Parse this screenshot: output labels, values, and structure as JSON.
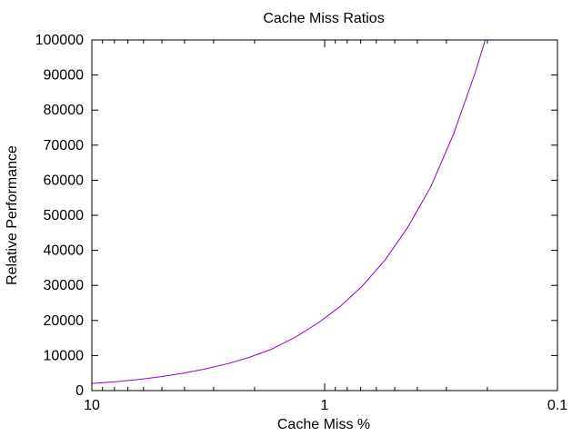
{
  "chart_data": {
    "type": "line",
    "title": "Cache Miss Ratios",
    "xlabel": "Cache Miss %",
    "ylabel": "Relative Performance",
    "x_scale": "log",
    "x_reversed": true,
    "xlim": [
      10,
      0.1
    ],
    "ylim": [
      0,
      100000
    ],
    "x_ticks": [
      {
        "value": 10,
        "label": "10"
      },
      {
        "value": 1,
        "label": "1"
      },
      {
        "value": 0.1,
        "label": "0.1"
      }
    ],
    "y_ticks": [
      {
        "value": 0,
        "label": "0"
      },
      {
        "value": 10000,
        "label": "10000"
      },
      {
        "value": 20000,
        "label": "20000"
      },
      {
        "value": 30000,
        "label": "30000"
      },
      {
        "value": 40000,
        "label": "40000"
      },
      {
        "value": 50000,
        "label": "50000"
      },
      {
        "value": 60000,
        "label": "60000"
      },
      {
        "value": 70000,
        "label": "70000"
      },
      {
        "value": 80000,
        "label": "80000"
      },
      {
        "value": 90000,
        "label": "90000"
      },
      {
        "value": 100000,
        "label": "100000"
      }
    ],
    "grid": false,
    "legend": "none",
    "series": [
      {
        "color": "#9400d3",
        "x": [
          10,
          8,
          6.4,
          5.1,
          4.1,
          3.3,
          2.6,
          2.1,
          1.7,
          1.34,
          1.07,
          0.86,
          0.69,
          0.55,
          0.44,
          0.35,
          0.28,
          0.225,
          0.18
        ],
        "y": [
          2000,
          2500,
          3120,
          3920,
          4880,
          6100,
          7690,
          9520,
          11760,
          15180,
          19230,
          23910,
          29800,
          37220,
          46520,
          58140,
          72990,
          90900,
          112000
        ]
      }
    ]
  }
}
